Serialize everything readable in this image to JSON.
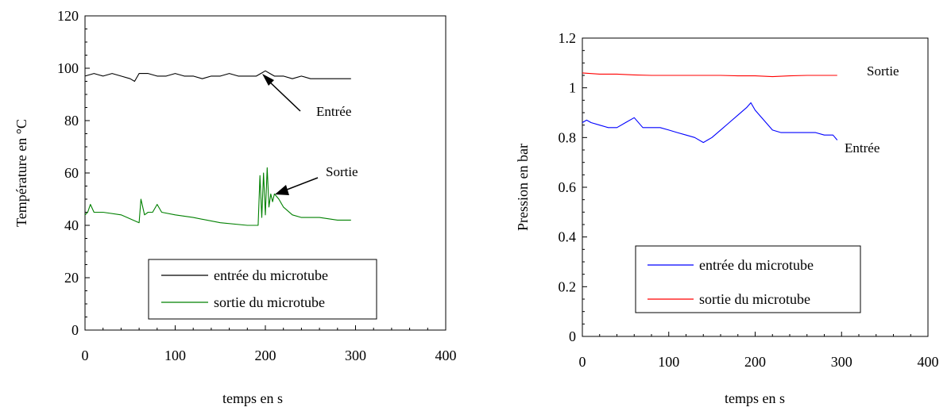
{
  "chart_data": [
    {
      "type": "line",
      "title": "",
      "xlabel": "temps en s",
      "ylabel": "Température en °C",
      "xlim": [
        0,
        400
      ],
      "ylim": [
        0,
        120
      ],
      "xticks": [
        "0",
        "100",
        "200",
        "300",
        "400"
      ],
      "yticks": [
        "0",
        "20",
        "40",
        "60",
        "80",
        "100",
        "120"
      ],
      "xtick_values": [
        0,
        100,
        200,
        300,
        400
      ],
      "ytick_values": [
        0,
        20,
        40,
        60,
        80,
        100,
        120
      ],
      "grid": false,
      "legend_position": "bottom-center",
      "series": [
        {
          "name": "entrée du microtube",
          "color": "#000000",
          "x": [
            0,
            10,
            20,
            30,
            40,
            50,
            55,
            60,
            70,
            80,
            90,
            100,
            110,
            120,
            130,
            140,
            150,
            160,
            170,
            180,
            190,
            195,
            200,
            205,
            210,
            220,
            230,
            240,
            250,
            260,
            270,
            280,
            290,
            295
          ],
          "y": [
            97,
            98,
            97,
            98,
            97,
            96,
            95,
            98,
            98,
            97,
            97,
            98,
            97,
            97,
            96,
            97,
            97,
            98,
            97,
            97,
            97,
            98,
            99,
            98,
            97,
            97,
            96,
            97,
            96,
            96,
            96,
            96,
            96,
            96
          ]
        },
        {
          "name": "sortie du microtube",
          "color": "#008000",
          "x": [
            0,
            3,
            6,
            10,
            20,
            40,
            60,
            62,
            66,
            70,
            75,
            80,
            85,
            100,
            120,
            150,
            180,
            192,
            194,
            196,
            198,
            200,
            202,
            204,
            206,
            208,
            210,
            215,
            220,
            230,
            240,
            260,
            280,
            295
          ],
          "y": [
            44,
            45,
            48,
            45,
            45,
            44,
            41,
            50,
            44,
            45,
            45,
            48,
            45,
            44,
            43,
            41,
            40,
            40,
            59,
            43,
            60,
            44,
            62,
            47,
            52,
            49,
            52,
            50,
            47,
            44,
            43,
            43,
            42,
            42
          ]
        }
      ],
      "annotations": [
        "Entrée",
        "Sortie"
      ]
    },
    {
      "type": "line",
      "title": "",
      "xlabel": "temps en s",
      "ylabel": "Pression en bar",
      "xlim": [
        0,
        400
      ],
      "ylim": [
        0,
        1.2
      ],
      "xticks": [
        "0",
        "100",
        "200",
        "300",
        "400"
      ],
      "yticks": [
        "0",
        "0.2",
        "0.4",
        "0.6",
        "0.8",
        "1",
        "1.2"
      ],
      "xtick_values": [
        0,
        100,
        200,
        300,
        400
      ],
      "ytick_values": [
        0,
        0.2,
        0.4,
        0.6,
        0.8,
        1.0,
        1.2
      ],
      "grid": false,
      "legend_position": "bottom-center",
      "series": [
        {
          "name": "entrée du microtube",
          "color": "#0000ff",
          "x": [
            0,
            5,
            10,
            20,
            30,
            40,
            50,
            60,
            70,
            80,
            90,
            100,
            110,
            120,
            130,
            140,
            150,
            160,
            170,
            180,
            190,
            195,
            200,
            210,
            220,
            230,
            240,
            250,
            260,
            270,
            280,
            290,
            295
          ],
          "y": [
            0.86,
            0.87,
            0.86,
            0.85,
            0.84,
            0.84,
            0.86,
            0.88,
            0.84,
            0.84,
            0.84,
            0.83,
            0.82,
            0.81,
            0.8,
            0.78,
            0.8,
            0.83,
            0.86,
            0.89,
            0.92,
            0.94,
            0.91,
            0.87,
            0.83,
            0.82,
            0.82,
            0.82,
            0.82,
            0.82,
            0.81,
            0.81,
            0.79
          ]
        },
        {
          "name": "sortie du microtube",
          "color": "#ff0000",
          "x": [
            0,
            20,
            40,
            60,
            80,
            100,
            120,
            140,
            160,
            180,
            200,
            220,
            240,
            260,
            280,
            295
          ],
          "y": [
            1.06,
            1.055,
            1.055,
            1.052,
            1.05,
            1.05,
            1.05,
            1.05,
            1.05,
            1.048,
            1.048,
            1.045,
            1.048,
            1.05,
            1.05,
            1.05
          ]
        }
      ],
      "annotations": [
        "Sortie",
        "Entrée"
      ]
    }
  ]
}
